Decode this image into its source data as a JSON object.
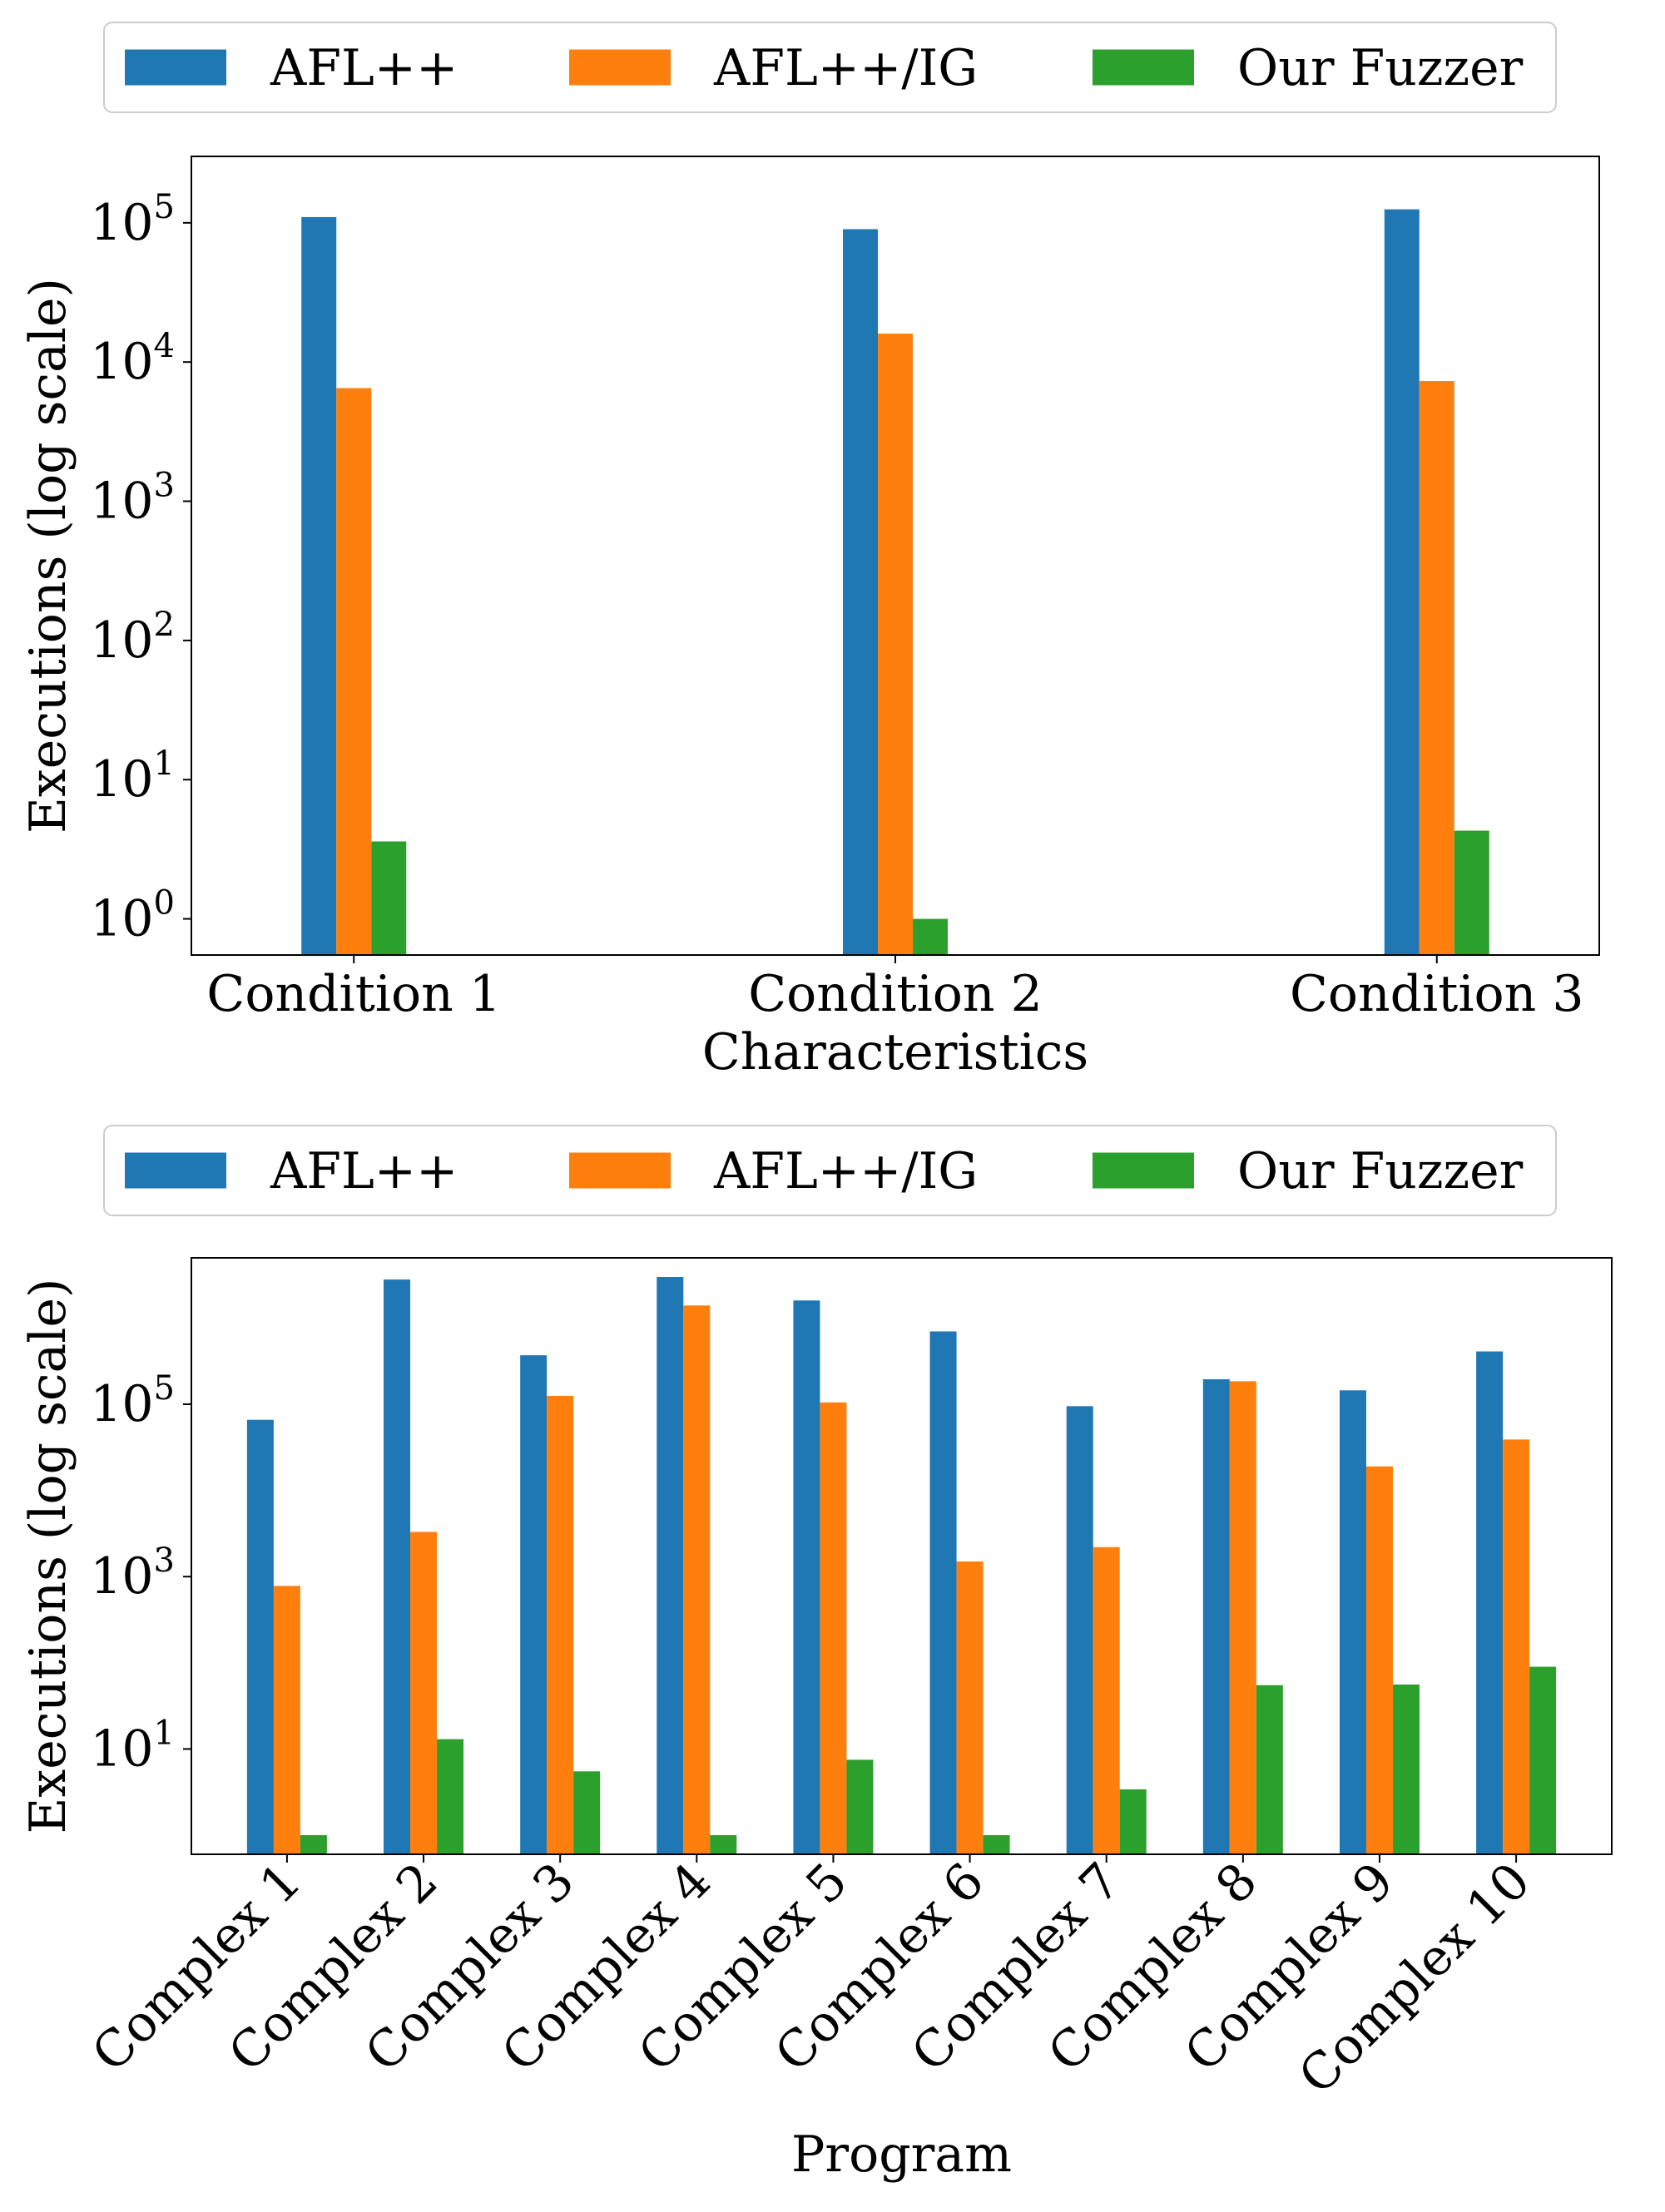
{
  "colors": {
    "afl": "#1f77b4",
    "afl_ig": "#ff7f0e",
    "ours": "#2ca02c"
  },
  "chart_data": [
    {
      "type": "bar",
      "scale": "log",
      "categories": [
        "Condition 1",
        "Condition 2",
        "Condition 3"
      ],
      "series": [
        {
          "name": "AFL++",
          "values": [
            110000,
            90000,
            125000
          ]
        },
        {
          "name": "AFL++/IG",
          "values": [
            6500,
            16000,
            7300
          ]
        },
        {
          "name": "Our Fuzzer",
          "values": [
            3.6,
            1,
            4.3
          ]
        }
      ],
      "legend": [
        "AFL++",
        "AFL++/IG",
        "Our Fuzzer"
      ],
      "legend_position": "top-center, above axes",
      "xlabel": "Characteristics",
      "ylabel": "Executions (log scale)",
      "ylim": [
        0.55,
        300000
      ],
      "yticks": [
        {
          "base": "10",
          "exp": "0",
          "value": 1
        },
        {
          "base": "10",
          "exp": "1",
          "value": 10
        },
        {
          "base": "10",
          "exp": "2",
          "value": 100
        },
        {
          "base": "10",
          "exp": "3",
          "value": 1000
        },
        {
          "base": "10",
          "exp": "4",
          "value": 10000
        },
        {
          "base": "10",
          "exp": "5",
          "value": 100000
        }
      ],
      "grid": false
    },
    {
      "type": "bar",
      "scale": "log",
      "categories": [
        "Complex 1",
        "Complex 2",
        "Complex 3",
        "Complex 4",
        "Complex 5",
        "Complex 6",
        "Complex 7",
        "Complex 8",
        "Complex 9",
        "Complex 10"
      ],
      "series": [
        {
          "name": "AFL++",
          "values": [
            66000,
            2800000,
            370000,
            3000000,
            1600000,
            700000,
            95000,
            195000,
            145000,
            410000
          ]
        },
        {
          "name": "AFL++/IG",
          "values": [
            780,
            3300,
            125000,
            1400000,
            105000,
            1500,
            2200,
            185000,
            19000,
            39000
          ]
        },
        {
          "name": "Our Fuzzer",
          "values": [
            1,
            13,
            5.5,
            1,
            7.5,
            1,
            3.4,
            55,
            56,
            90
          ]
        }
      ],
      "legend": [
        "AFL++",
        "AFL++/IG",
        "Our Fuzzer"
      ],
      "legend_position": "top-center, above axes",
      "xlabel": "Program",
      "ylabel": "Executions (log scale)",
      "ylim": [
        0.6,
        5000000
      ],
      "yticks": [
        {
          "base": "10",
          "exp": "1",
          "value": 10
        },
        {
          "base": "10",
          "exp": "3",
          "value": 1000
        },
        {
          "base": "10",
          "exp": "5",
          "value": 100000
        }
      ],
      "grid": false
    }
  ]
}
